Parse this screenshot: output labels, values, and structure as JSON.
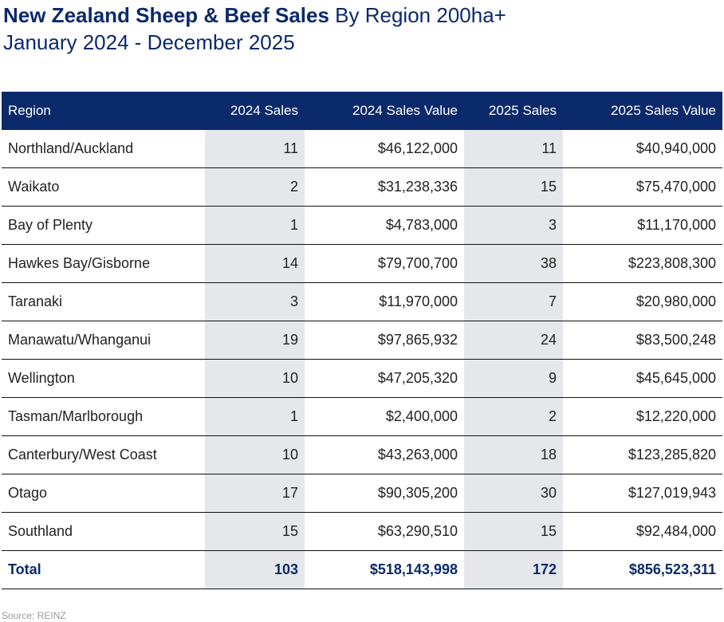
{
  "title": {
    "bold": "New Zealand Sheep & Beef Sales",
    "rest": "By Region 200ha+"
  },
  "subtitle": "January 2024 - December 2025",
  "columns": [
    "Region",
    "2024 Sales",
    "2024 Sales Value",
    "2025 Sales",
    "2025 Sales Value"
  ],
  "rows": [
    [
      "Northland/Auckland",
      "11",
      "$46,122,000",
      "11",
      "$40,940,000"
    ],
    [
      "Waikato",
      "2",
      "$31,238,336",
      "15",
      "$75,470,000"
    ],
    [
      "Bay of Plenty",
      "1",
      "$4,783,000",
      "3",
      "$11,170,000"
    ],
    [
      "Hawkes Bay/Gisborne",
      "14",
      "$79,700,700",
      "38",
      "$223,808,300"
    ],
    [
      "Taranaki",
      "3",
      "$11,970,000",
      "7",
      "$20,980,000"
    ],
    [
      "Manawatu/Whanganui",
      "19",
      "$97,865,932",
      "24",
      "$83,500,248"
    ],
    [
      "Wellington",
      "10",
      "$47,205,320",
      "9",
      "$45,645,000"
    ],
    [
      "Tasman/Marlborough",
      "1",
      "$2,400,000",
      "2",
      "$12,220,000"
    ],
    [
      "Canterbury/West Coast",
      "10",
      "$43,263,000",
      "18",
      "$123,285,820"
    ],
    [
      "Otago",
      "17",
      "$90,305,200",
      "30",
      "$127,019,943"
    ],
    [
      "Southland",
      "15",
      "$63,290,510",
      "15",
      "$92,484,000"
    ]
  ],
  "total": [
    "Total",
    "103",
    "$518,143,998",
    "172",
    "$856,523,311"
  ],
  "source": "Source: REINZ",
  "colors": {
    "header_bg": "#0b2a6b",
    "shade": "#e5e7ea",
    "title": "#0b2a6b"
  }
}
